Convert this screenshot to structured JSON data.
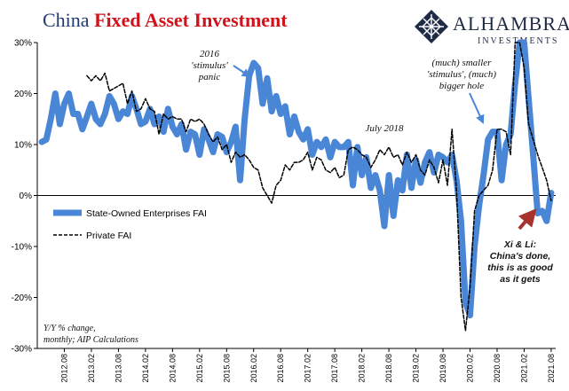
{
  "title": {
    "part1": "China ",
    "part2": "Fixed Asset Investment"
  },
  "brand": {
    "name": "ALHAMBRA",
    "sub": "INVESTMENTS",
    "logo_icon": "diamond-lattice-logo"
  },
  "notes": {
    "stimulus_2016": "2016\n'stimulus'\npanic",
    "july_2018": "July 2018",
    "smaller_stimulus": "(much) smaller\n'stimulus', (much)\nbigger hole",
    "xi_li": "Xi & Li:\nChina's done,\nthis is as good\nas it gets",
    "source": "Y/Y % change,\nmonthly; AIP Calculations"
  },
  "colors": {
    "soe": "#4a86d6",
    "private": "#000000",
    "title_blue": "#1f3b6f",
    "title_red": "#d0121b",
    "arrow_blue": "#4a86d6",
    "arrow_red": "#a8322d"
  },
  "chart_data": {
    "type": "line",
    "ylabel": "",
    "xlabel": "",
    "ylim": [
      -30,
      30
    ],
    "yticks": [
      30,
      20,
      10,
      0,
      -10,
      -20,
      -30
    ],
    "ytick_labels": [
      "30%",
      "20%",
      "10%",
      "0%",
      "-10%",
      "-20%",
      "-30%"
    ],
    "xlim": [
      "2012-02",
      "2021-09"
    ],
    "xticks": [
      "2012.08",
      "2013.02",
      "2013.08",
      "2014.02",
      "2014.08",
      "2015.02",
      "2015.08",
      "2016.02",
      "2016.08",
      "2017.02",
      "2017.08",
      "2018.02",
      "2018.08",
      "2019.02",
      "2019.08",
      "2020.02",
      "2020.08",
      "2021.02",
      "2021.08"
    ],
    "grid": false,
    "legend_position": "left",
    "series": [
      {
        "name": "State-Owned Enterprises FAI",
        "style": "thick-solid",
        "points": [
          [
            "2012-03",
            10.5
          ],
          [
            "2012-04",
            11
          ],
          [
            "2012-05",
            15
          ],
          [
            "2012-06",
            20
          ],
          [
            "2012-07",
            14
          ],
          [
            "2012-08",
            18
          ],
          [
            "2012-09",
            20
          ],
          [
            "2012-10",
            16
          ],
          [
            "2012-11",
            16
          ],
          [
            "2012-12",
            13
          ],
          [
            "2013-01",
            15.5
          ],
          [
            "2013-02",
            18
          ],
          [
            "2013-03",
            15
          ],
          [
            "2013-04",
            14
          ],
          [
            "2013-05",
            16
          ],
          [
            "2013-06",
            19.5
          ],
          [
            "2013-07",
            18
          ],
          [
            "2013-08",
            15
          ],
          [
            "2013-09",
            16.5
          ],
          [
            "2013-10",
            16
          ],
          [
            "2013-11",
            19.5
          ],
          [
            "2013-12",
            17
          ],
          [
            "2014-01",
            14
          ],
          [
            "2014-02",
            14.5
          ],
          [
            "2014-03",
            17
          ],
          [
            "2014-04",
            14
          ],
          [
            "2014-05",
            15.5
          ],
          [
            "2014-06",
            12.5
          ],
          [
            "2014-07",
            17
          ],
          [
            "2014-08",
            13.5
          ],
          [
            "2014-09",
            12
          ],
          [
            "2014-10",
            14
          ],
          [
            "2014-11",
            9
          ],
          [
            "2014-12",
            12.5
          ],
          [
            "2015-01",
            12
          ],
          [
            "2015-02",
            8
          ],
          [
            "2015-03",
            13
          ],
          [
            "2015-04",
            11
          ],
          [
            "2015-05",
            8.5
          ],
          [
            "2015-06",
            12
          ],
          [
            "2015-07",
            11.5
          ],
          [
            "2015-08",
            8.5
          ],
          [
            "2015-09",
            10.5
          ],
          [
            "2015-10",
            13.5
          ],
          [
            "2015-11",
            3
          ],
          [
            "2015-12",
            15
          ],
          [
            "2016-01",
            23.5
          ],
          [
            "2016-02",
            26
          ],
          [
            "2016-03",
            25
          ],
          [
            "2016-04",
            18
          ],
          [
            "2016-05",
            23
          ],
          [
            "2016-06",
            16.5
          ],
          [
            "2016-07",
            19.5
          ],
          [
            "2016-08",
            16
          ],
          [
            "2016-09",
            17.5
          ],
          [
            "2016-10",
            12
          ],
          [
            "2016-11",
            15.5
          ],
          [
            "2016-12",
            12.5
          ],
          [
            "2017-01",
            11
          ],
          [
            "2017-02",
            13
          ],
          [
            "2017-03",
            8
          ],
          [
            "2017-04",
            10.5
          ],
          [
            "2017-05",
            9.5
          ],
          [
            "2017-06",
            11
          ],
          [
            "2017-07",
            7.5
          ],
          [
            "2017-08",
            10.5
          ],
          [
            "2017-09",
            9.5
          ],
          [
            "2017-10",
            9.5
          ],
          [
            "2017-11",
            10.5
          ],
          [
            "2017-12",
            2
          ],
          [
            "2018-01",
            9.5
          ],
          [
            "2018-02",
            4
          ],
          [
            "2018-03",
            7.5
          ],
          [
            "2018-04",
            1.5
          ],
          [
            "2018-05",
            4
          ],
          [
            "2018-06",
            1
          ],
          [
            "2018-07",
            -6
          ],
          [
            "2018-08",
            4
          ],
          [
            "2018-09",
            -4
          ],
          [
            "2018-10",
            3
          ],
          [
            "2018-11",
            1
          ],
          [
            "2018-12",
            8
          ],
          [
            "2019-01",
            1.5
          ],
          [
            "2019-02",
            7
          ],
          [
            "2019-03",
            2.5
          ],
          [
            "2019-04",
            6.5
          ],
          [
            "2019-05",
            8.5
          ],
          [
            "2019-06",
            4.5
          ],
          [
            "2019-07",
            8
          ],
          [
            "2019-08",
            7.5
          ],
          [
            "2019-09",
            6.5
          ],
          [
            "2019-10",
            8
          ],
          [
            "2019-11",
            3
          ],
          [
            "2019-12",
            -5
          ],
          [
            "2020-01",
            -21
          ],
          [
            "2020-02",
            -23.5
          ],
          [
            "2020-03",
            -10
          ],
          [
            "2020-04",
            -2
          ],
          [
            "2020-05",
            4
          ],
          [
            "2020-06",
            11
          ],
          [
            "2020-07",
            12.5
          ],
          [
            "2020-08",
            12.5
          ],
          [
            "2020-09",
            3
          ],
          [
            "2020-10",
            10
          ],
          [
            "2020-11",
            12
          ],
          [
            "2020-12",
            22
          ],
          [
            "2021-01",
            30
          ],
          [
            "2021-02",
            30
          ],
          [
            "2021-03",
            19
          ],
          [
            "2021-04",
            8
          ],
          [
            "2021-05",
            -3.5
          ],
          [
            "2021-06",
            -3
          ],
          [
            "2021-07",
            -5
          ],
          [
            "2021-08",
            0.5
          ]
        ]
      },
      {
        "name": "Private FAI",
        "style": "dashed",
        "points": [
          [
            "2013-01",
            23.5
          ],
          [
            "2013-02",
            22.5
          ],
          [
            "2013-03",
            23.5
          ],
          [
            "2013-04",
            22.5
          ],
          [
            "2013-05",
            24
          ],
          [
            "2013-06",
            20.5
          ],
          [
            "2013-07",
            21
          ],
          [
            "2013-08",
            21.5
          ],
          [
            "2013-09",
            22
          ],
          [
            "2013-10",
            18
          ],
          [
            "2013-11",
            20.5
          ],
          [
            "2013-12",
            16.5
          ],
          [
            "2014-01",
            17
          ],
          [
            "2014-02",
            19
          ],
          [
            "2014-03",
            17
          ],
          [
            "2014-04",
            16.5
          ],
          [
            "2014-05",
            12
          ],
          [
            "2014-06",
            16
          ],
          [
            "2014-07",
            15
          ],
          [
            "2014-08",
            15.5
          ],
          [
            "2014-09",
            15
          ],
          [
            "2014-10",
            15
          ],
          [
            "2014-11",
            12.5
          ],
          [
            "2014-12",
            15
          ],
          [
            "2015-01",
            14.5
          ],
          [
            "2015-02",
            15
          ],
          [
            "2015-03",
            14
          ],
          [
            "2015-04",
            12
          ],
          [
            "2015-05",
            10.5
          ],
          [
            "2015-06",
            11.5
          ],
          [
            "2015-07",
            9
          ],
          [
            "2015-08",
            10
          ],
          [
            "2015-09",
            6.5
          ],
          [
            "2015-10",
            8.5
          ],
          [
            "2015-11",
            7.5
          ],
          [
            "2015-12",
            8
          ],
          [
            "2016-01",
            7
          ],
          [
            "2016-02",
            5.5
          ],
          [
            "2016-03",
            5
          ],
          [
            "2016-04",
            1.5
          ],
          [
            "2016-05",
            0
          ],
          [
            "2016-06",
            -1.5
          ],
          [
            "2016-07",
            2
          ],
          [
            "2016-08",
            3
          ],
          [
            "2016-09",
            6
          ],
          [
            "2016-10",
            5
          ],
          [
            "2016-11",
            6.5
          ],
          [
            "2016-12",
            6.5
          ],
          [
            "2017-01",
            7
          ],
          [
            "2017-02",
            8.5
          ],
          [
            "2017-03",
            5
          ],
          [
            "2017-04",
            7.5
          ],
          [
            "2017-05",
            7
          ],
          [
            "2017-06",
            5
          ],
          [
            "2017-07",
            4.5
          ],
          [
            "2017-08",
            5.5
          ],
          [
            "2017-09",
            3.5
          ],
          [
            "2017-10",
            4
          ],
          [
            "2017-11",
            9
          ],
          [
            "2017-12",
            9.5
          ],
          [
            "2018-01",
            9
          ],
          [
            "2018-02",
            8
          ],
          [
            "2018-03",
            7.5
          ],
          [
            "2018-04",
            5.5
          ],
          [
            "2018-05",
            7
          ],
          [
            "2018-06",
            9
          ],
          [
            "2018-07",
            8
          ],
          [
            "2018-08",
            9.5
          ],
          [
            "2018-09",
            7.5
          ],
          [
            "2018-10",
            8
          ],
          [
            "2018-11",
            6
          ],
          [
            "2018-12",
            8.5
          ],
          [
            "2019-01",
            6.5
          ],
          [
            "2019-02",
            8
          ],
          [
            "2019-03",
            5
          ],
          [
            "2019-04",
            4
          ],
          [
            "2019-05",
            7
          ],
          [
            "2019-06",
            5.5
          ],
          [
            "2019-07",
            2.5
          ],
          [
            "2019-08",
            7
          ],
          [
            "2019-09",
            2
          ],
          [
            "2019-10",
            13
          ],
          [
            "2019-11",
            1
          ],
          [
            "2019-12",
            -20
          ],
          [
            "2020-01",
            -26.5
          ],
          [
            "2020-02",
            -18
          ],
          [
            "2020-03",
            -3
          ],
          [
            "2020-04",
            0
          ],
          [
            "2020-05",
            1
          ],
          [
            "2020-06",
            2
          ],
          [
            "2020-07",
            5
          ],
          [
            "2020-08",
            13
          ],
          [
            "2020-09",
            13
          ],
          [
            "2020-10",
            12.5
          ],
          [
            "2020-11",
            8
          ],
          [
            "2020-12",
            30
          ],
          [
            "2021-01",
            30
          ],
          [
            "2021-02",
            25
          ],
          [
            "2021-03",
            14
          ],
          [
            "2021-04",
            11
          ],
          [
            "2021-05",
            8
          ],
          [
            "2021-06",
            5.5
          ],
          [
            "2021-07",
            3
          ],
          [
            "2021-08",
            -1
          ]
        ]
      }
    ]
  }
}
